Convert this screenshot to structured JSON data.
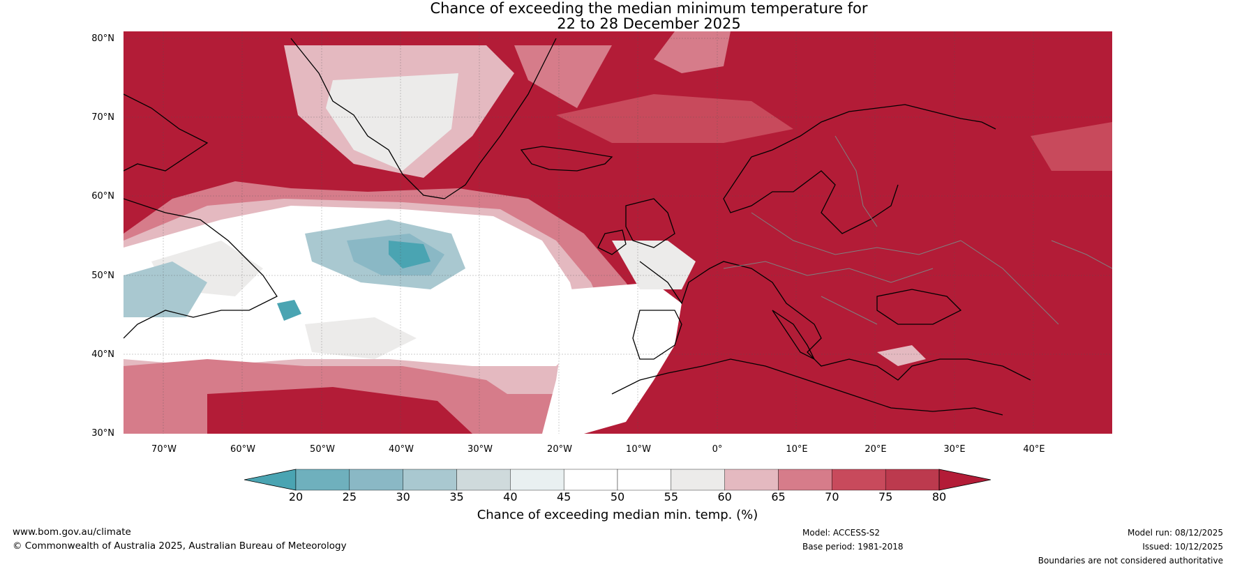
{
  "title": {
    "line1": "Chance of exceeding the median minimum temperature for",
    "line2": "22 to 28 December 2025"
  },
  "map": {
    "lat_labels": [
      "80°N",
      "70°N",
      "60°N",
      "50°N",
      "40°N",
      "30°N"
    ],
    "lon_labels": [
      "70°W",
      "60°W",
      "50°W",
      "40°W",
      "30°W",
      "20°W",
      "10°W",
      "0°",
      "10°E",
      "20°E",
      "30°E",
      "40°E"
    ],
    "colors": {
      "dark_red": "#b31c37",
      "red": "#c84a5c",
      "pink": "#d67c8a",
      "light_pink": "#e4b9c0",
      "white": "#ffffff",
      "light_grey": "#ecebea",
      "light_blue": "#a9c8d0",
      "teal": "#4aa4b2",
      "coast": "#000000",
      "border": "#808080"
    }
  },
  "colorbar": {
    "ticks": [
      "20",
      "25",
      "30",
      "35",
      "40",
      "45",
      "50",
      "55",
      "60",
      "65",
      "70",
      "75",
      "80"
    ],
    "colors": [
      "#4aa4b2",
      "#6fb0bd",
      "#8ab8c5",
      "#a9c8d0",
      "#cfdadc",
      "#e9f0f1",
      "#ffffff",
      "#ffffff",
      "#ecebea",
      "#e4b9c0",
      "#d67c8a",
      "#c84a5c",
      "#bc3a4e",
      "#b31c37"
    ],
    "label": "Chance of exceeding median min. temp. (%)"
  },
  "footer": {
    "website": "www.bom.gov.au/climate",
    "copyright": "© Commonwealth of Australia 2025, Australian Bureau of Meteorology",
    "model": "Model: ACCESS-S2",
    "base_period": "Base period: 1981-2018",
    "model_run": "Model run: 08/12/2025",
    "issued": "Issued: 10/12/2025",
    "disclaimer": "Boundaries are not considered authoritative"
  }
}
